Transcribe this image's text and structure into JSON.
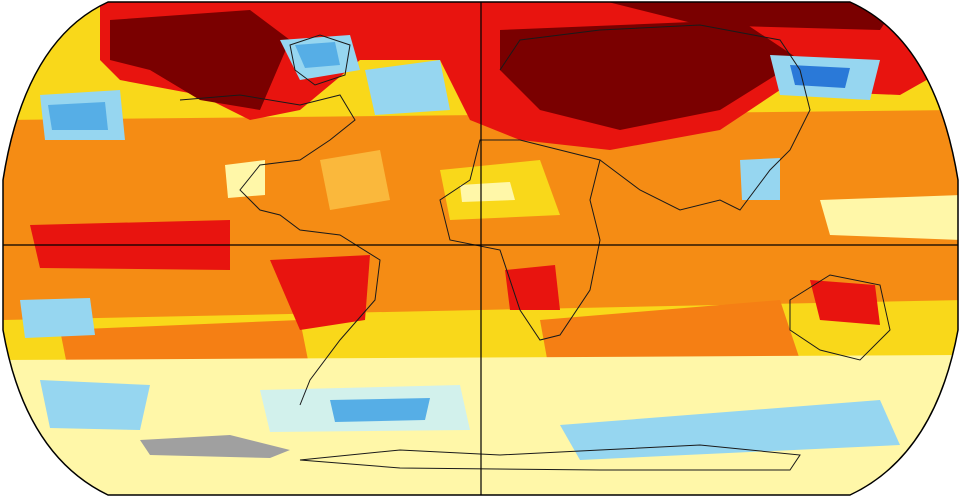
{
  "map": {
    "projection": "robinson",
    "background": "#ffffff",
    "palette": {
      "darkred": "#7a0000",
      "red": "#e8140f",
      "orange": "#f57f14",
      "lightorange": "#fab83c",
      "yellow": "#f9d81a",
      "paleyellow": "#fff7a8",
      "white": "#ffffff",
      "palecyan": "#d2f1ec",
      "lightblue": "#96d6f0",
      "blue": "#56aee6",
      "deepblue": "#2a79d8",
      "nodata": "#a0a0a0",
      "coast": "#1a1a1a",
      "gridline": "#000000"
    }
  }
}
